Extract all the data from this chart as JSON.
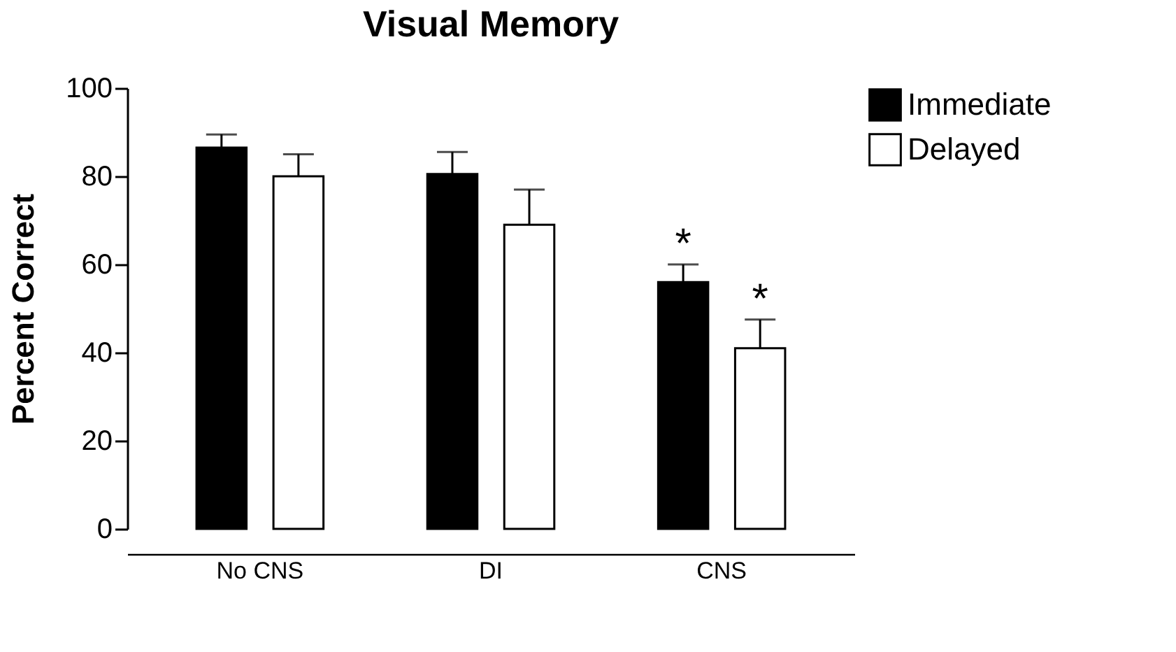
{
  "chart_data": {
    "type": "bar",
    "title": "Visual Memory",
    "ylabel": "Percent Correct",
    "categories": [
      "No CNS",
      "DI",
      "CNS"
    ],
    "series": [
      {
        "name": "Immediate",
        "color": "#000000",
        "values": [
          86.5,
          80.5,
          56
        ],
        "errors": [
          [
            86.5,
            89.5
          ],
          [
            80.5,
            85.5
          ],
          [
            56,
            60
          ]
        ],
        "value_labels": [
          null,
          null,
          "*"
        ]
      },
      {
        "name": "Delayed",
        "color": "#ffffff",
        "values": [
          80,
          69,
          41
        ],
        "errors": [
          [
            80,
            85
          ],
          [
            69,
            77
          ],
          [
            41,
            47.5
          ]
        ],
        "value_labels": [
          null,
          null,
          "*"
        ]
      }
    ],
    "ylim": [
      0,
      100
    ],
    "yticks": [
      0,
      20,
      40,
      60,
      80,
      100
    ],
    "grid": false,
    "legend": "top right"
  }
}
